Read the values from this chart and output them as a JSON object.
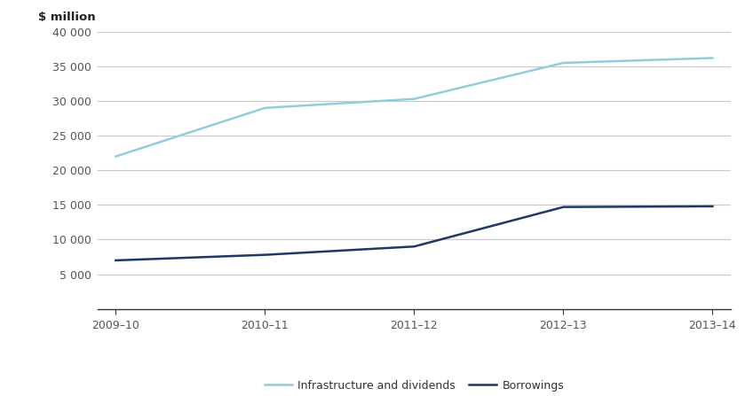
{
  "x_labels": [
    "2009–10",
    "2010–11",
    "2011–12",
    "2012–13",
    "2013–14"
  ],
  "x_positions": [
    0,
    1,
    2,
    3,
    4
  ],
  "infrastructure_dividends": [
    22000,
    29000,
    30300,
    35500,
    36200
  ],
  "borrowings": [
    7000,
    7800,
    9000,
    14700,
    14800
  ],
  "infra_color": "#92CDDC",
  "borrowings_color": "#1F3864",
  "ylabel": "$ million",
  "ylim": [
    0,
    40000
  ],
  "yticks": [
    5000,
    10000,
    15000,
    20000,
    25000,
    30000,
    35000,
    40000
  ],
  "ytick_labels": [
    "5 000",
    "10 000",
    "15 000",
    "20 000",
    "25 000",
    "30 000",
    "35 000",
    "40 000"
  ],
  "legend_infra": "Infrastructure and dividends",
  "legend_borrowings": "Borrowings",
  "line_width": 1.8,
  "grid_color": "#C8C8C8",
  "background_color": "#FFFFFF",
  "tick_color": "#555555",
  "spine_color": "#333333"
}
